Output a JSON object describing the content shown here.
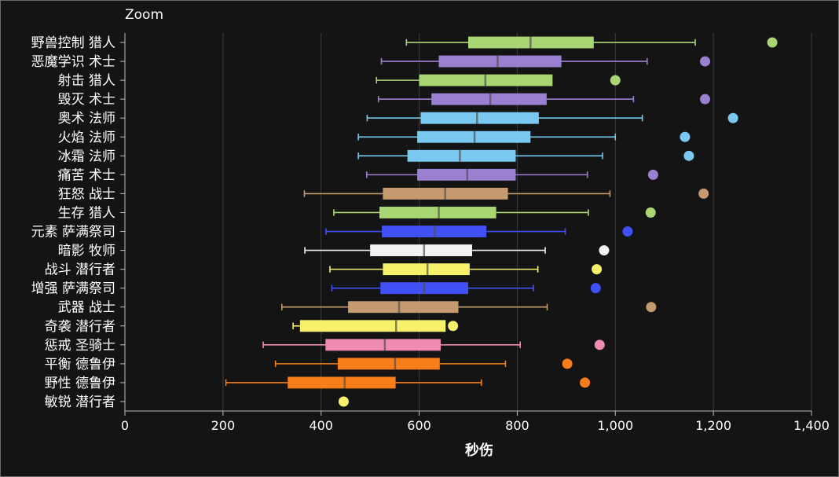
{
  "toolbar": {
    "zoom_label": "Zoom"
  },
  "chart_data": {
    "type": "boxplot",
    "xlabel": "秒伤",
    "xlim": [
      0,
      1400
    ],
    "xticks": [
      0,
      200,
      400,
      600,
      800,
      1000,
      1200,
      1400
    ],
    "xtick_labels": [
      "0",
      "200",
      "400",
      "600",
      "800",
      "1,000",
      "1,200",
      "1,400"
    ],
    "grid": "vertical",
    "categories": [
      "野兽控制 猎人",
      "恶魔学识 术士",
      "射击 猎人",
      "毁灭 术士",
      "奥术 法师",
      "火焰 法师",
      "冰霜 法师",
      "痛苦 术士",
      "狂怒 战士",
      "生存 猎人",
      "元素 萨满祭司",
      "暗影 牧师",
      "战斗 潜行者",
      "增强 萨满祭司",
      "武器 战士",
      "奇袭 潜行者",
      "惩戒 圣骑士",
      "平衡 德鲁伊",
      "野性 德鲁伊",
      "敏锐 潜行者"
    ],
    "boxes": [
      {
        "label": "野兽控制 猎人",
        "whisker_low": 574,
        "q1": 700,
        "median": 827,
        "q3": 956,
        "whisker_high": 1163,
        "outlier": 1320,
        "color": "#a8d672"
      },
      {
        "label": "恶魔学识 术士",
        "whisker_low": 523,
        "q1": 640,
        "median": 760,
        "q3": 890,
        "whisker_high": 1065,
        "outlier": 1183,
        "color": "#9b7fd0"
      },
      {
        "label": "射击 猎人",
        "whisker_low": 513,
        "q1": 600,
        "median": 735,
        "q3": 872,
        "whisker_high": null,
        "outlier": 1000,
        "color": "#a8d672"
      },
      {
        "label": "毁灭 术士",
        "whisker_low": 517,
        "q1": 625,
        "median": 745,
        "q3": 860,
        "whisker_high": 1037,
        "outlier": 1183,
        "color": "#9b7fd0"
      },
      {
        "label": "奥术 法师",
        "whisker_low": 494,
        "q1": 603,
        "median": 718,
        "q3": 844,
        "whisker_high": 1055,
        "outlier": 1240,
        "color": "#79c8f0"
      },
      {
        "label": "火焰 法师",
        "whisker_low": 476,
        "q1": 596,
        "median": 713,
        "q3": 827,
        "whisker_high": 1000,
        "outlier": 1142,
        "color": "#79c8f0"
      },
      {
        "label": "冰霜 法师",
        "whisker_low": 476,
        "q1": 576,
        "median": 683,
        "q3": 797,
        "whisker_high": 974,
        "outlier": 1150,
        "color": "#79c8f0"
      },
      {
        "label": "痛苦 术士",
        "whisker_low": 493,
        "q1": 596,
        "median": 698,
        "q3": 797,
        "whisker_high": 943,
        "outlier": 1077,
        "color": "#9b7fd0"
      },
      {
        "label": "狂怒 战士",
        "whisker_low": 366,
        "q1": 526,
        "median": 653,
        "q3": 781,
        "whisker_high": 989,
        "outlier": 1180,
        "color": "#c59a6e"
      },
      {
        "label": "生存 猎人",
        "whisker_low": 426,
        "q1": 519,
        "median": 640,
        "q3": 757,
        "whisker_high": 945,
        "outlier": 1072,
        "color": "#a8d672"
      },
      {
        "label": "元素 萨满祭司",
        "whisker_low": 410,
        "q1": 524,
        "median": 632,
        "q3": 737,
        "whisker_high": 898,
        "outlier": 1025,
        "color": "#3f51f5"
      },
      {
        "label": "暗影 牧师",
        "whisker_low": 367,
        "q1": 500,
        "median": 610,
        "q3": 708,
        "whisker_high": 857,
        "outlier": 977,
        "color": "#f2f2f2"
      },
      {
        "label": "战斗 潜行者",
        "whisker_low": 418,
        "q1": 526,
        "median": 617,
        "q3": 703,
        "whisker_high": 842,
        "outlier": 962,
        "color": "#f6f06a"
      },
      {
        "label": "增强 萨满祭司",
        "whisker_low": 422,
        "q1": 521,
        "median": 610,
        "q3": 700,
        "whisker_high": 833,
        "outlier": 960,
        "color": "#3f51f5"
      },
      {
        "label": "武器 战士",
        "whisker_low": 320,
        "q1": 455,
        "median": 559,
        "q3": 680,
        "whisker_high": 861,
        "outlier": 1073,
        "color": "#c59a6e"
      },
      {
        "label": "奇袭 潜行者",
        "whisker_low": 343,
        "q1": 357,
        "median": 553,
        "q3": 654,
        "whisker_high": null,
        "outlier": 669,
        "color": "#f6f06a"
      },
      {
        "label": "惩戒 圣骑士",
        "whisker_low": 282,
        "q1": 409,
        "median": 530,
        "q3": 644,
        "whisker_high": 806,
        "outlier": 968,
        "color": "#f08cb4"
      },
      {
        "label": "平衡 德鲁伊",
        "whisker_low": 307,
        "q1": 434,
        "median": 551,
        "q3": 642,
        "whisker_high": 776,
        "outlier": 902,
        "color": "#f77e1a"
      },
      {
        "label": "野性 德鲁伊",
        "whisker_low": 206,
        "q1": 332,
        "median": 448,
        "q3": 552,
        "whisker_high": 727,
        "outlier": 938,
        "color": "#f77e1a"
      },
      {
        "label": "敏锐 潜行者",
        "whisker_low": null,
        "q1": null,
        "median": null,
        "q3": null,
        "whisker_high": null,
        "outlier": 446,
        "color": "#f6f06a"
      }
    ]
  }
}
